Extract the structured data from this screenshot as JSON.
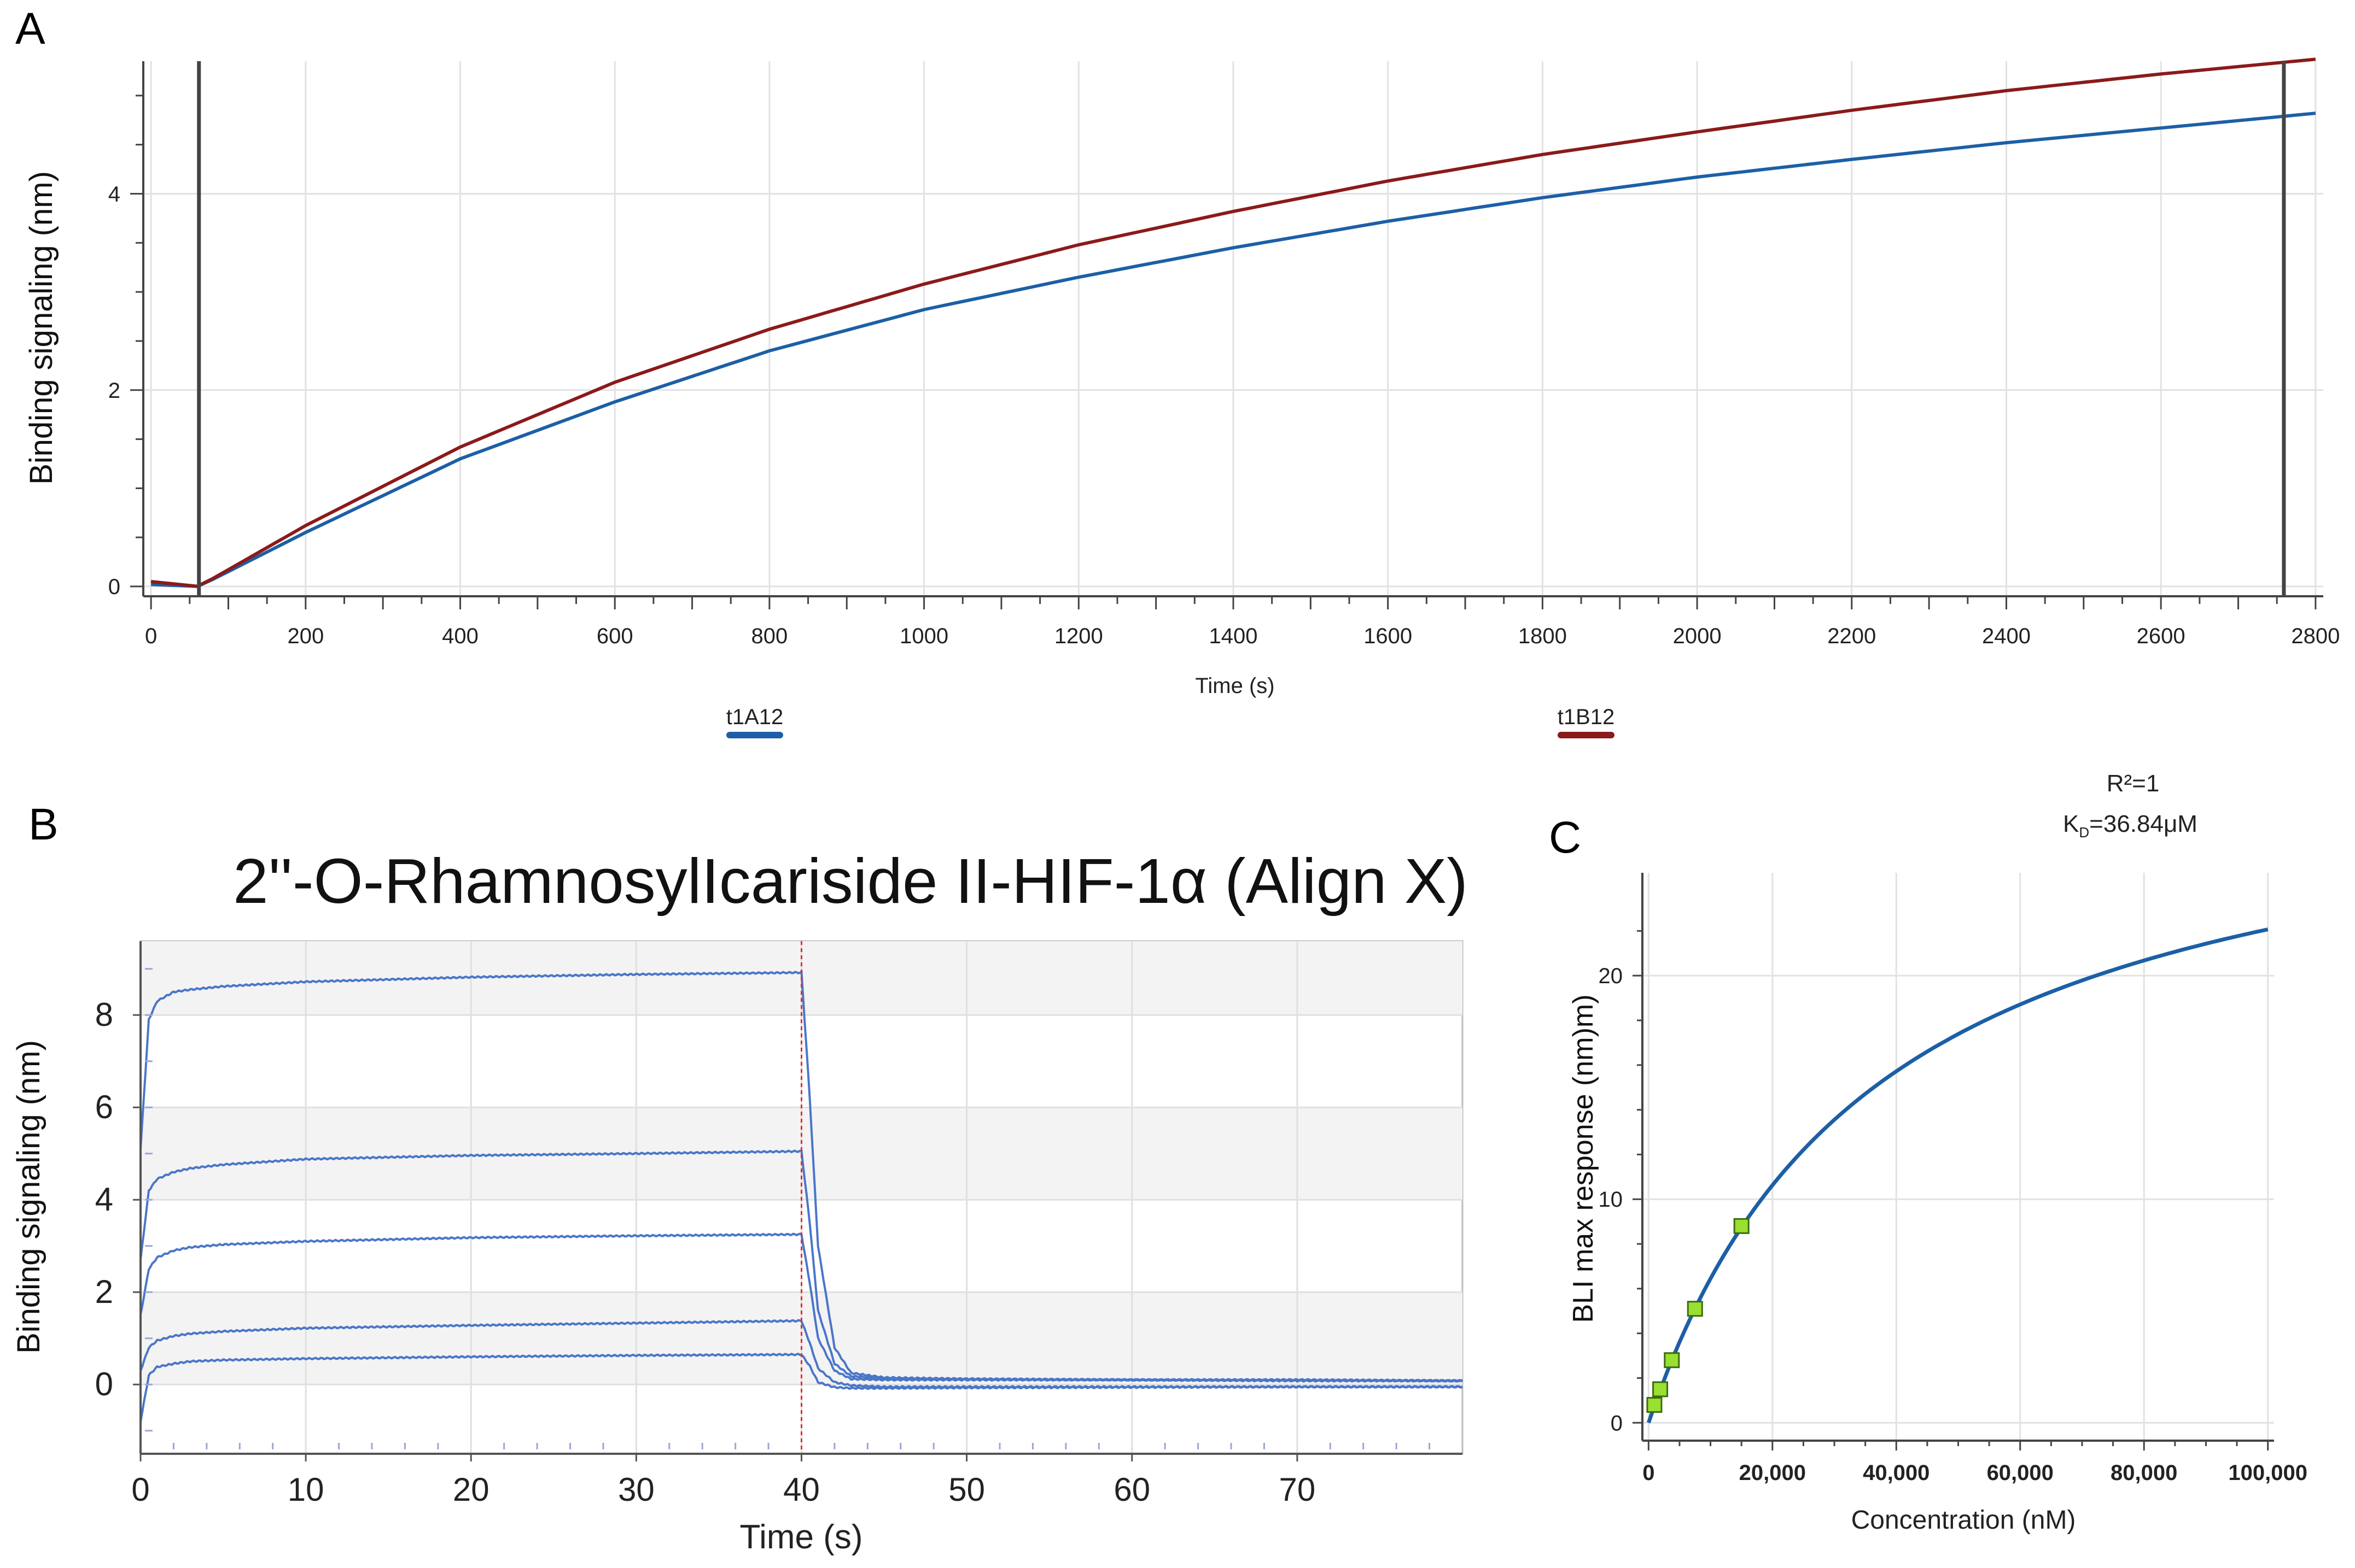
{
  "panels": {
    "a": {
      "label": "A"
    },
    "b": {
      "label": "B"
    },
    "c": {
      "label": "C"
    }
  },
  "colors": {
    "blue": "#1c5fa6",
    "darkred": "#8b1a1a",
    "b_curve": "#4a76c8",
    "red_dash": "#e53030",
    "marker_fill": "#99e030",
    "marker_stroke": "#3d6b10",
    "grid": "#e2e2e2",
    "axis": "#444444"
  },
  "chart_data": [
    {
      "id": "A",
      "type": "line",
      "title": "",
      "xlabel": "Time (s)",
      "ylabel": "Binding signaling (nm)",
      "xlim": [
        -10,
        2810
      ],
      "ylim": [
        -0.1,
        5.35
      ],
      "xticks": [
        0,
        200,
        400,
        600,
        800,
        1000,
        1200,
        1400,
        1600,
        1800,
        2000,
        2200,
        2400,
        2600,
        2800
      ],
      "yticks": [
        0,
        2,
        4
      ],
      "grid": true,
      "vlines": [
        62,
        2759
      ],
      "legend": [
        "t1A12",
        "t1B12"
      ],
      "series": [
        {
          "name": "t1A12",
          "color": "blue",
          "x": [
            0,
            62,
            200,
            400,
            600,
            800,
            1000,
            1200,
            1400,
            1600,
            1800,
            2000,
            2200,
            2400,
            2600,
            2800
          ],
          "y": [
            0.02,
            0.0,
            0.55,
            1.3,
            1.88,
            2.4,
            2.82,
            3.15,
            3.45,
            3.72,
            3.96,
            4.17,
            4.35,
            4.52,
            4.67,
            4.82
          ]
        },
        {
          "name": "t1B12",
          "color": "darkred",
          "x": [
            0,
            62,
            200,
            400,
            600,
            800,
            1000,
            1200,
            1400,
            1600,
            1800,
            2000,
            2200,
            2400,
            2600,
            2800
          ],
          "y": [
            0.05,
            0.0,
            0.62,
            1.42,
            2.08,
            2.62,
            3.08,
            3.48,
            3.82,
            4.13,
            4.4,
            4.63,
            4.85,
            5.05,
            5.22,
            5.37
          ]
        }
      ]
    },
    {
      "id": "B",
      "type": "line",
      "title": "2''-O-RhamnosylIcariside II-HIF-1α (Align X)",
      "xlabel": "Time (s)",
      "ylabel": "Binding signaling (nm)",
      "xlim": [
        0,
        80
      ],
      "ylim": [
        -1.5,
        9.6
      ],
      "xticks": [
        0,
        10,
        20,
        30,
        40,
        50,
        60,
        70
      ],
      "yticks": [
        0,
        2,
        4,
        6,
        8
      ],
      "grid": true,
      "vlines": [
        40
      ],
      "series": [
        {
          "x": [
            0,
            0.5,
            1,
            2,
            3,
            5,
            10,
            20,
            30,
            40,
            40.5,
            41,
            42,
            43,
            45,
            50,
            60,
            70,
            80
          ],
          "y": [
            5.1,
            7.9,
            8.3,
            8.5,
            8.55,
            8.62,
            8.72,
            8.82,
            8.88,
            8.92,
            6.2,
            3.0,
            0.8,
            0.25,
            0.15,
            0.12,
            0.1,
            0.1,
            0.08
          ]
        },
        {
          "x": [
            0,
            0.5,
            1,
            2,
            3,
            5,
            10,
            20,
            30,
            40,
            40.5,
            41,
            42,
            43,
            45,
            50,
            60,
            70,
            80
          ],
          "y": [
            2.7,
            4.2,
            4.45,
            4.6,
            4.68,
            4.76,
            4.88,
            4.96,
            5.0,
            5.05,
            3.5,
            1.6,
            0.45,
            0.18,
            0.13,
            0.12,
            0.1,
            0.1,
            0.08
          ]
        },
        {
          "x": [
            0,
            0.5,
            1,
            2,
            3,
            5,
            10,
            20,
            30,
            40,
            40.5,
            41,
            42,
            43,
            45,
            50,
            60,
            70,
            80
          ],
          "y": [
            1.5,
            2.5,
            2.75,
            2.9,
            2.97,
            3.03,
            3.1,
            3.18,
            3.22,
            3.25,
            2.2,
            1.0,
            0.3,
            0.12,
            0.1,
            0.1,
            0.1,
            0.08,
            0.08
          ]
        },
        {
          "x": [
            0,
            0.5,
            1,
            2,
            3,
            5,
            10,
            20,
            30,
            40,
            40.5,
            41,
            42,
            43,
            45,
            50,
            60,
            70,
            80
          ],
          "y": [
            0.3,
            0.8,
            0.95,
            1.05,
            1.1,
            1.15,
            1.22,
            1.28,
            1.33,
            1.38,
            0.9,
            0.35,
            0.05,
            -0.02,
            -0.05,
            -0.05,
            -0.05,
            -0.05,
            -0.05
          ]
        },
        {
          "x": [
            0,
            0.5,
            1,
            2,
            3,
            5,
            10,
            20,
            30,
            40,
            40.5,
            41,
            42,
            43,
            45,
            50,
            60,
            70,
            80
          ],
          "y": [
            -0.8,
            0.2,
            0.38,
            0.45,
            0.5,
            0.53,
            0.56,
            0.6,
            0.63,
            0.65,
            0.4,
            0.05,
            -0.06,
            -0.08,
            -0.08,
            -0.07,
            -0.06,
            -0.05,
            -0.05
          ]
        }
      ]
    },
    {
      "id": "C",
      "type": "scatter",
      "title": "",
      "annotation_r2": "R²=1",
      "annotation_kd_prefix": "K",
      "annotation_kd_sub": "D",
      "annotation_kd_value": "=36.84μM",
      "xlabel": "Concentration (nM)",
      "ylabel": "BLI max response (nm)m)",
      "xlim": [
        -1000,
        101000
      ],
      "ylim": [
        -0.8,
        24.6
      ],
      "xticks": [
        0,
        20000,
        40000,
        60000,
        80000,
        100000
      ],
      "xticklabels": [
        "0",
        "20,000",
        "40,000",
        "60,000",
        "80,000",
        "100,000"
      ],
      "yticks": [
        0,
        10,
        20
      ],
      "grid": true,
      "fit": {
        "bmax": 30.2,
        "kd": 36840
      },
      "points": {
        "x": [
          937.5,
          1875,
          3750,
          7500,
          15000
        ],
        "y": [
          0.8,
          1.5,
          2.8,
          5.1,
          8.8
        ]
      }
    }
  ]
}
